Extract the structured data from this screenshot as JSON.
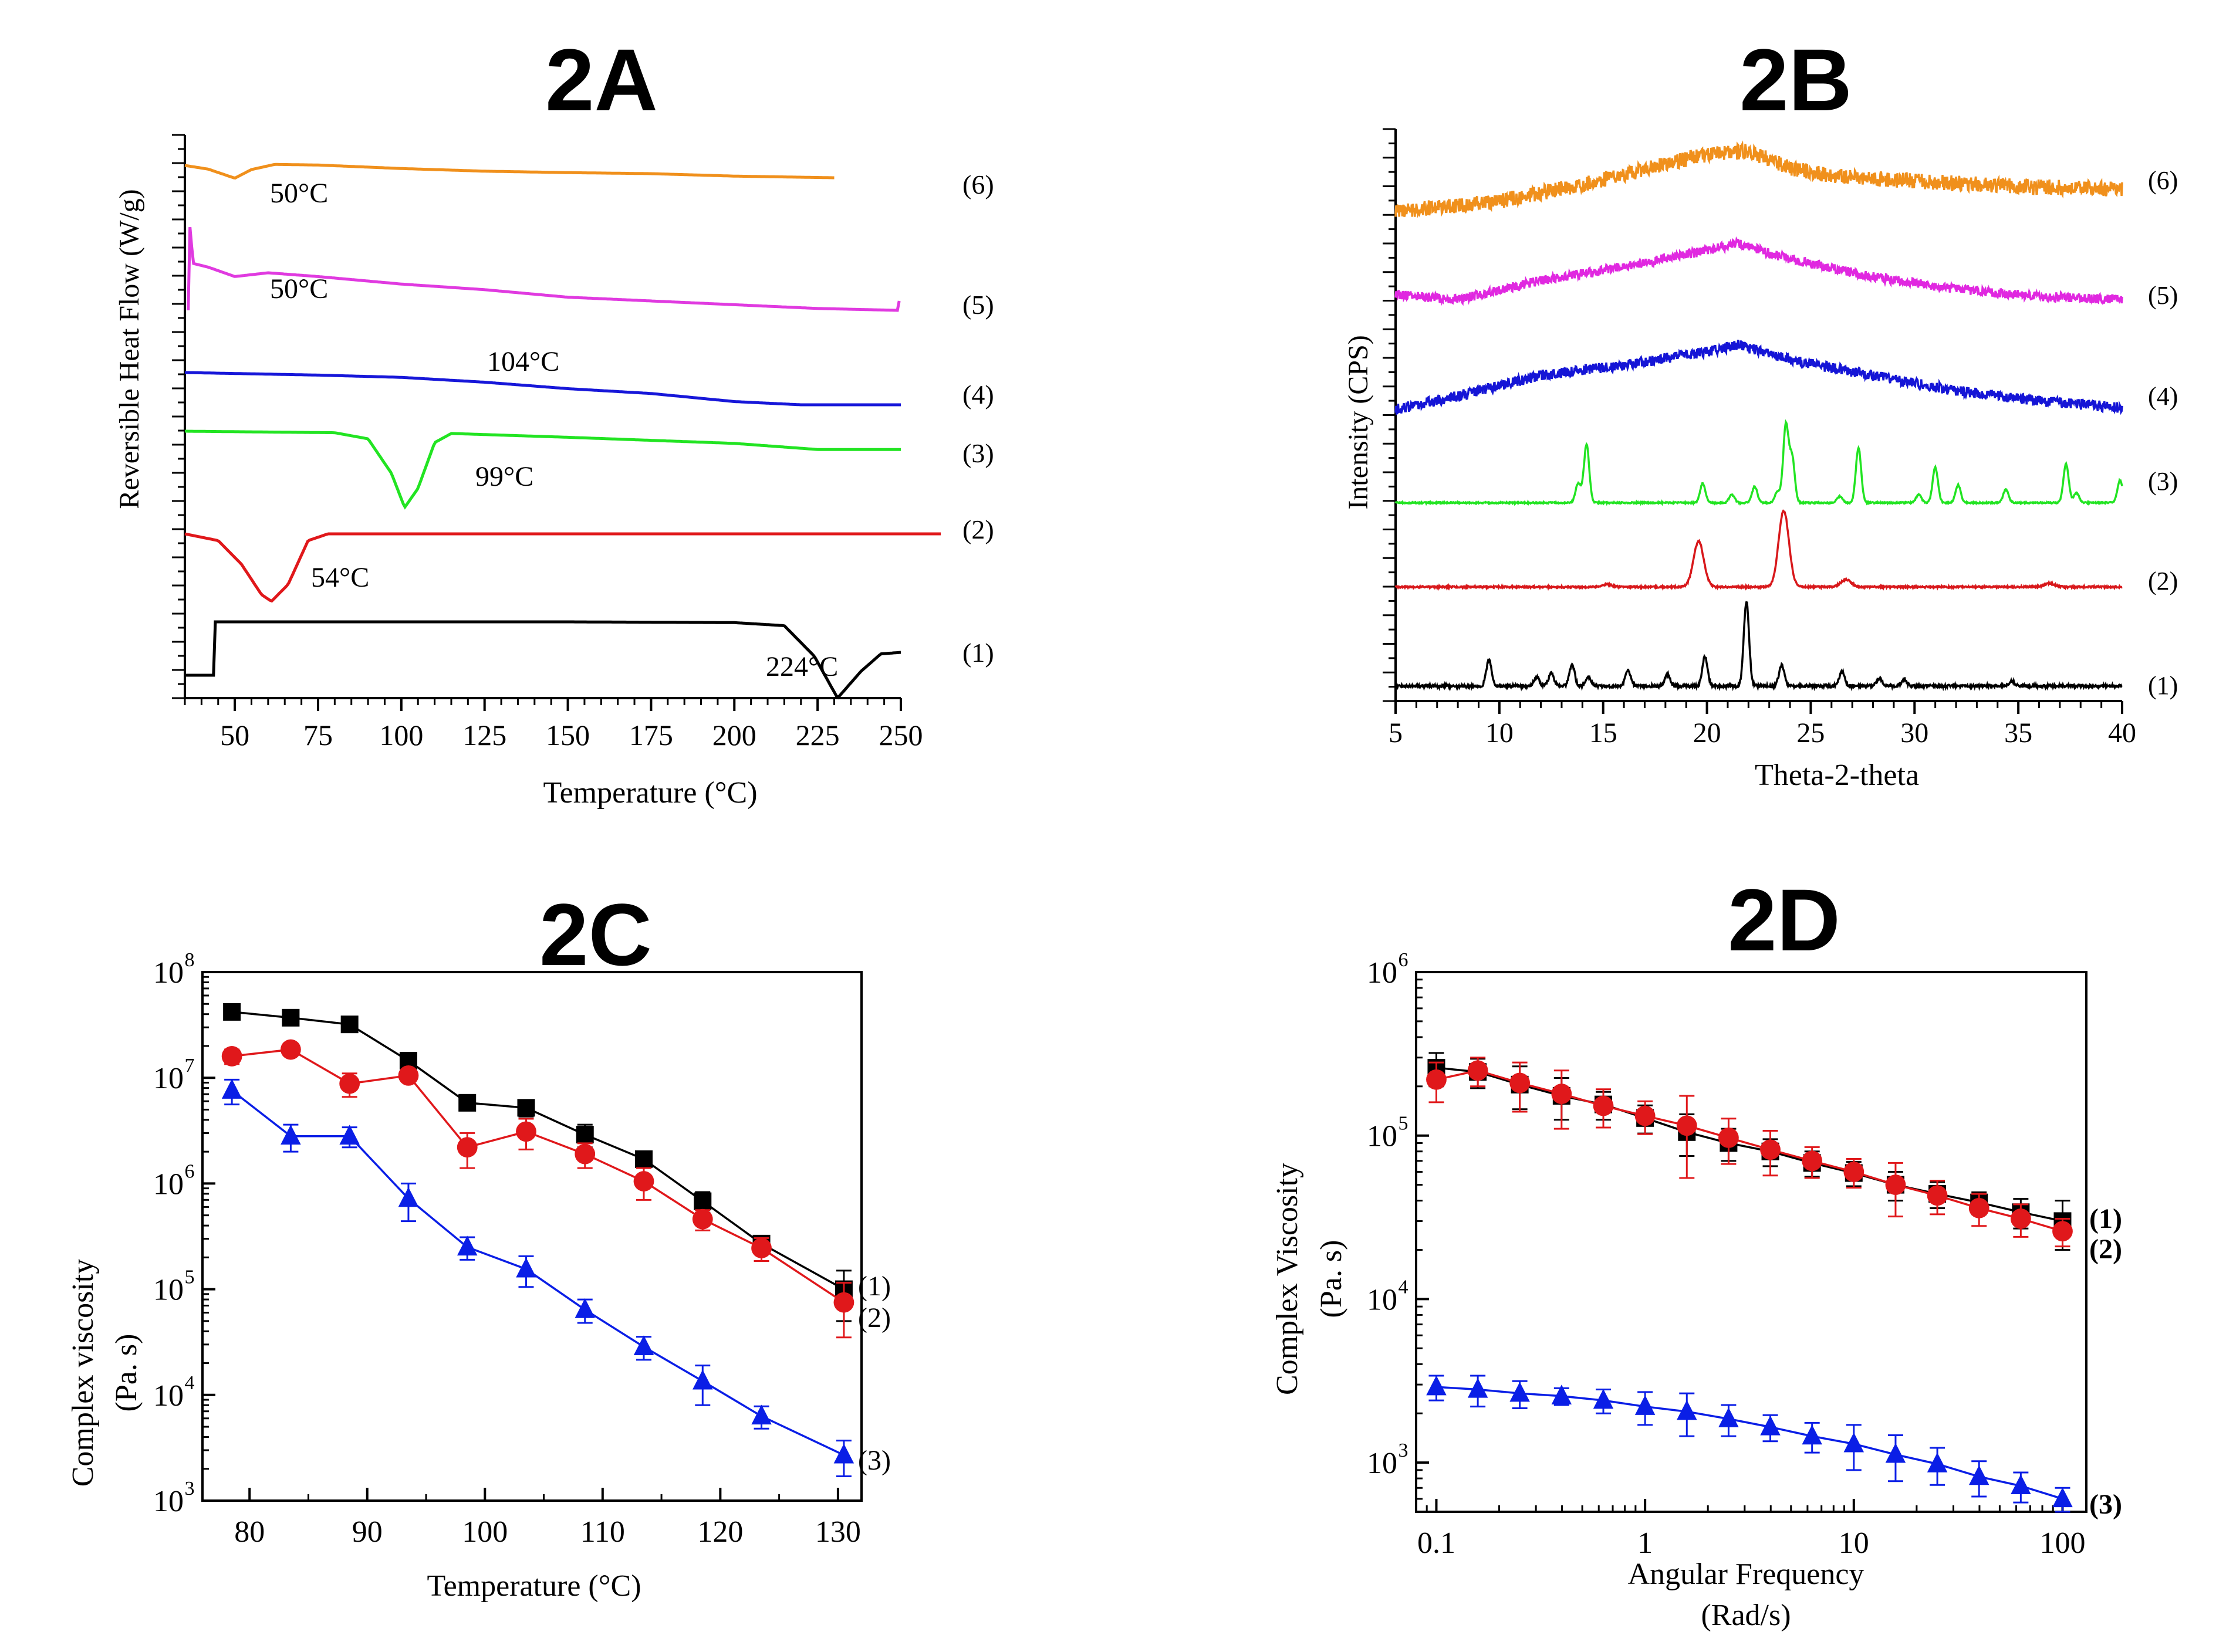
{
  "figure": {
    "panels": [
      "2A",
      "2B",
      "2C",
      "2D"
    ]
  },
  "chart_data": [
    {
      "id": "2A",
      "type": "line",
      "title": "2A",
      "xlabel": "Temperature (°C)",
      "ylabel": "Reversible Heat Flow (W/g)",
      "xlim": [
        35,
        250
      ],
      "xticks": [
        50,
        75,
        100,
        125,
        150,
        175,
        200,
        225,
        250
      ],
      "y_tick_labels_shown": false,
      "grid": false,
      "series": [
        {
          "name": "(1)",
          "color": "#000000",
          "annotation": "224°C",
          "points": [
            [
              35,
              0.3
            ],
            [
              44,
              0.3
            ],
            [
              44,
              1.0
            ],
            [
              100,
              1.0
            ],
            [
              150,
              1.0
            ],
            [
              200,
              0.99
            ],
            [
              215,
              0.95
            ],
            [
              224,
              0.55
            ],
            [
              231,
              0.0
            ],
            [
              238,
              0.35
            ],
            [
              244,
              0.58
            ],
            [
              250,
              0.6
            ]
          ]
        },
        {
          "name": "(2)",
          "color": "#e0181b",
          "annotation": "54°C",
          "points": [
            [
              35,
              1.0
            ],
            [
              45,
              0.9
            ],
            [
              52,
              0.55
            ],
            [
              58,
              0.1
            ],
            [
              61,
              0.0
            ],
            [
              66,
              0.25
            ],
            [
              72,
              0.9
            ],
            [
              78,
              1.0
            ],
            [
              150,
              1.0
            ],
            [
              250,
              1.0
            ],
            [
              262,
              1.0
            ]
          ]
        },
        {
          "name": "(3)",
          "color": "#22e422",
          "annotation": "99°C",
          "points": [
            [
              35,
              1.0
            ],
            [
              80,
              0.98
            ],
            [
              90,
              0.9
            ],
            [
              97,
              0.45
            ],
            [
              101,
              0.0
            ],
            [
              105,
              0.25
            ],
            [
              110,
              0.85
            ],
            [
              115,
              0.97
            ],
            [
              150,
              0.92
            ],
            [
              200,
              0.84
            ],
            [
              225,
              0.76
            ],
            [
              250,
              0.76
            ]
          ]
        },
        {
          "name": "(4)",
          "color": "#1717d9",
          "annotation": "104°C",
          "points": [
            [
              35,
              1.0
            ],
            [
              75,
              0.92
            ],
            [
              100,
              0.85
            ],
            [
              125,
              0.7
            ],
            [
              150,
              0.5
            ],
            [
              175,
              0.35
            ],
            [
              200,
              0.1
            ],
            [
              220,
              0.0
            ],
            [
              250,
              0.0
            ]
          ]
        },
        {
          "name": "(5)",
          "color": "#e03ae0",
          "annotation": "50°C",
          "points": [
            [
              36,
              0.1
            ],
            [
              36.5,
              1.0
            ],
            [
              37.5,
              0.6
            ],
            [
              42,
              0.56
            ],
            [
              50,
              0.46
            ],
            [
              60,
              0.5
            ],
            [
              75,
              0.46
            ],
            [
              100,
              0.38
            ],
            [
              125,
              0.32
            ],
            [
              150,
              0.24
            ],
            [
              175,
              0.2
            ],
            [
              200,
              0.16
            ],
            [
              225,
              0.12
            ],
            [
              249,
              0.1
            ],
            [
              249.5,
              0.2
            ]
          ]
        },
        {
          "name": "(6)",
          "color": "#f0901c",
          "annotation": "50°C",
          "points": [
            [
              35,
              0.8
            ],
            [
              42,
              0.62
            ],
            [
              50,
              0.18
            ],
            [
              55,
              0.6
            ],
            [
              62,
              0.85
            ],
            [
              75,
              0.82
            ],
            [
              100,
              0.65
            ],
            [
              125,
              0.52
            ],
            [
              150,
              0.45
            ],
            [
              175,
              0.4
            ],
            [
              200,
              0.28
            ],
            [
              230,
              0.2
            ]
          ]
        }
      ]
    },
    {
      "id": "2B",
      "type": "line",
      "title": "2B",
      "xlabel": "Theta-2-theta",
      "ylabel": "Intensity (CPS)",
      "xlim": [
        5,
        40
      ],
      "xticks": [
        5,
        10,
        15,
        20,
        25,
        30,
        35,
        40
      ],
      "y_tick_labels_shown": false,
      "grid": false,
      "series": [
        {
          "name": "(1)",
          "color": "#000000",
          "baseline": 0.3,
          "peaks": [
            [
              9.5,
              1.0
            ],
            [
              11.8,
              0.35
            ],
            [
              12.5,
              0.5
            ],
            [
              13.5,
              0.8
            ],
            [
              14.3,
              0.35
            ],
            [
              16.2,
              0.6
            ],
            [
              18.1,
              0.45
            ],
            [
              19.9,
              1.1
            ],
            [
              21.9,
              3.2
            ],
            [
              23.6,
              0.8
            ],
            [
              26.5,
              0.55
            ],
            [
              28.3,
              0.3
            ],
            [
              29.5,
              0.25
            ],
            [
              34.7,
              0.18
            ]
          ]
        },
        {
          "name": "(2)",
          "color": "#d8181b",
          "baseline": 0.15,
          "peaks": [
            [
              15.2,
              0.08
            ],
            [
              19.6,
              1.55
            ],
            [
              23.7,
              2.6
            ],
            [
              26.7,
              0.25
            ],
            [
              36.5,
              0.12
            ]
          ]
        },
        {
          "name": "(3)",
          "color": "#22e422",
          "baseline": 0.0,
          "peaks": [
            [
              13.8,
              0.6
            ],
            [
              14.2,
              1.8
            ],
            [
              19.8,
              0.6
            ],
            [
              21.2,
              0.25
            ],
            [
              22.3,
              0.5
            ],
            [
              23.4,
              0.35
            ],
            [
              23.8,
              2.4
            ],
            [
              24.1,
              1.4
            ],
            [
              26.4,
              0.2
            ],
            [
              27.3,
              1.7
            ],
            [
              30.2,
              0.25
            ],
            [
              31.0,
              1.1
            ],
            [
              32.1,
              0.55
            ],
            [
              34.4,
              0.4
            ],
            [
              37.3,
              1.2
            ],
            [
              37.8,
              0.3
            ],
            [
              39.9,
              0.7
            ]
          ]
        },
        {
          "name": "(4)",
          "color": "#1515d6",
          "baseline": 0.0,
          "hump": [
            [
              5,
              0.0
            ],
            [
              8,
              0.4
            ],
            [
              12,
              1.0
            ],
            [
              16,
              1.3
            ],
            [
              20,
              1.7
            ],
            [
              21.5,
              1.9
            ],
            [
              24,
              1.45
            ],
            [
              28,
              1.0
            ],
            [
              32,
              0.55
            ],
            [
              36,
              0.25
            ],
            [
              40,
              0.05
            ]
          ]
        },
        {
          "name": "(5)",
          "color": "#e028e0",
          "baseline": 0.0,
          "hump": [
            [
              5,
              0.3
            ],
            [
              8,
              0.15
            ],
            [
              12,
              0.7
            ],
            [
              16,
              1.1
            ],
            [
              20,
              1.55
            ],
            [
              21.5,
              1.75
            ],
            [
              24,
              1.3
            ],
            [
              28,
              0.8
            ],
            [
              32,
              0.45
            ],
            [
              36,
              0.25
            ],
            [
              40,
              0.15
            ]
          ]
        },
        {
          "name": "(6)",
          "color": "#f0901c",
          "baseline": 0.0,
          "hump": [
            [
              5,
              0.0
            ],
            [
              10,
              0.3
            ],
            [
              14,
              0.8
            ],
            [
              18,
              1.4
            ],
            [
              20,
              1.7
            ],
            [
              22,
              1.8
            ],
            [
              24,
              1.3
            ],
            [
              26,
              1.05
            ],
            [
              30,
              0.9
            ],
            [
              35,
              0.75
            ],
            [
              40,
              0.65
            ]
          ]
        }
      ]
    },
    {
      "id": "2C",
      "type": "scatter",
      "title": "2C",
      "xlabel": "Temperature (°C)",
      "ylabel": [
        "Complex viscosity",
        "(Pa. s)"
      ],
      "xlim": [
        76,
        132
      ],
      "ylim": [
        1000,
        100000000
      ],
      "yscale": "log",
      "xticks": [
        80,
        90,
        100,
        110,
        120,
        130
      ],
      "yticks": [
        1000,
        10000,
        100000,
        1000000,
        10000000,
        100000000
      ],
      "ytick_exponents": [
        "3",
        "4",
        "5",
        "6",
        "7",
        "8"
      ],
      "grid": false,
      "x": [
        78.5,
        83.5,
        88.5,
        93.5,
        98.5,
        103.5,
        108.5,
        113.5,
        118.5,
        123.5,
        130.5
      ],
      "series": [
        {
          "name": "(1)",
          "color": "#000000",
          "marker": "square",
          "values": [
            42000000,
            37000000,
            32000000,
            14500000,
            5800000,
            5200000,
            2900000,
            1700000,
            680000,
            270000,
            100000
          ],
          "errors": [
            0,
            0,
            0,
            1500000,
            700000,
            900000,
            700000,
            200000,
            150000,
            20000,
            50000
          ]
        },
        {
          "name": "(2)",
          "color": "#e0181b",
          "marker": "circle",
          "values": [
            16000000,
            18500000,
            8800000,
            10500000,
            2200000,
            3100000,
            1900000,
            1050000,
            460000,
            245000,
            75000
          ],
          "errors": [
            2500000,
            0,
            2200000,
            0,
            800000,
            1000000,
            500000,
            350000,
            100000,
            60000,
            40000
          ]
        },
        {
          "name": "(3)",
          "color": "#0a1ee6",
          "marker": "triangle",
          "values": [
            7600000,
            2800000,
            2800000,
            720000,
            250000,
            155000,
            64000,
            28500,
            13500,
            6300,
            2700
          ],
          "errors": [
            2000000,
            800000,
            600000,
            280000,
            60000,
            50000,
            16000,
            7000,
            5500,
            1500,
            1000
          ]
        }
      ]
    },
    {
      "id": "2D",
      "type": "scatter",
      "title": "2D",
      "xlabel": [
        "Angular Frequency",
        "(Rad/s)"
      ],
      "ylabel": [
        "Complex Viscosity",
        "(Pa. s)"
      ],
      "xlim": [
        0.08,
        130
      ],
      "ylim": [
        500,
        1000000
      ],
      "xscale": "log",
      "yscale": "log",
      "xticks": [
        0.1,
        1,
        10,
        100
      ],
      "xtick_labels": [
        "0.1",
        "1",
        "10",
        "100"
      ],
      "yticks": [
        1000,
        10000,
        100000,
        1000000
      ],
      "ytick_exponents": [
        "3",
        "4",
        "5",
        "6"
      ],
      "grid": false,
      "x": [
        0.1,
        0.158,
        0.251,
        0.398,
        0.631,
        1.0,
        1.585,
        2.512,
        3.981,
        6.31,
        10.0,
        15.85,
        25.12,
        39.81,
        63.1,
        100.0
      ],
      "series": [
        {
          "name": "(1)",
          "color": "#000000",
          "marker": "square",
          "values": [
            260000,
            245000,
            205000,
            175000,
            155000,
            128000,
            105000,
            90000,
            80000,
            68000,
            59000,
            50000,
            44000,
            39000,
            34000,
            30000
          ],
          "errors": [
            60000,
            50000,
            60000,
            50000,
            30000,
            25000,
            30000,
            20000,
            15000,
            12000,
            10000,
            10000,
            8000,
            6000,
            7000,
            10000
          ]
        },
        {
          "name": "(2)",
          "color": "#e0181b",
          "marker": "circle",
          "values": [
            220000,
            250000,
            210000,
            180000,
            152000,
            132000,
            115000,
            97000,
            82000,
            70000,
            60000,
            50000,
            43000,
            36000,
            31000,
            26000
          ],
          "errors": [
            60000,
            50000,
            70000,
            70000,
            40000,
            30000,
            60000,
            30000,
            25000,
            15000,
            12000,
            18000,
            10000,
            8000,
            7000,
            5000
          ]
        },
        {
          "name": "(3)",
          "color": "#0a1ee6",
          "marker": "triangle",
          "values": [
            2900,
            2800,
            2650,
            2550,
            2400,
            2200,
            2050,
            1850,
            1650,
            1450,
            1300,
            1120,
            980,
            820,
            720,
            600
          ],
          "errors": [
            500,
            600,
            500,
            300,
            400,
            500,
            600,
            400,
            300,
            300,
            400,
            350,
            250,
            200,
            150,
            100
          ]
        }
      ]
    }
  ]
}
